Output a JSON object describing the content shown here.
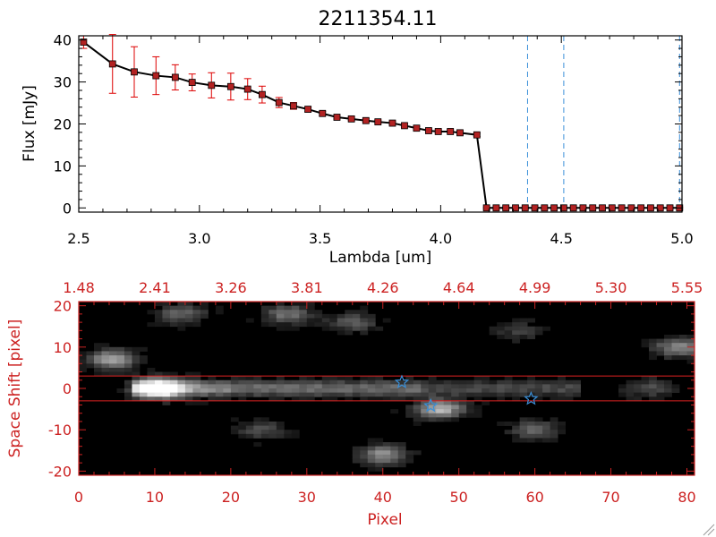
{
  "chart_data": [
    {
      "type": "line",
      "title": "2211354.11",
      "xlabel": "Lambda [um]",
      "ylabel": "Flux [mJy]",
      "xlim": [
        2.5,
        5.0
      ],
      "ylim": [
        -1,
        41
      ],
      "x_ticks": [
        "2.5",
        "3.0",
        "3.5",
        "4.0",
        "4.5",
        "5.0"
      ],
      "y_ticks": [
        "0",
        "10",
        "20",
        "30",
        "40"
      ],
      "grid": false,
      "series": [
        {
          "color": "#000000",
          "marker_color": "#b22222",
          "error_color": "#dd0000",
          "x": [
            2.52,
            2.64,
            2.73,
            2.82,
            2.9,
            2.97,
            3.05,
            3.13,
            3.2,
            3.26,
            3.33,
            3.39,
            3.45,
            3.51,
            3.57,
            3.63,
            3.69,
            3.74,
            3.8,
            3.85,
            3.9,
            3.95,
            3.99,
            4.04,
            4.08,
            4.15,
            4.19,
            4.23,
            4.27,
            4.31,
            4.35,
            4.39,
            4.43,
            4.47,
            4.51,
            4.55,
            4.59,
            4.63,
            4.67,
            4.71,
            4.75,
            4.79,
            4.83,
            4.87,
            4.91,
            4.95,
            4.99
          ],
          "y": [
            39.5,
            34.3,
            32.4,
            31.5,
            31.1,
            29.9,
            29.2,
            28.9,
            28.3,
            27.0,
            25.1,
            24.3,
            23.5,
            22.5,
            21.6,
            21.2,
            20.8,
            20.5,
            20.2,
            19.6,
            19.0,
            18.4,
            18.2,
            18.2,
            17.9,
            17.4,
            0,
            0,
            0,
            0,
            0,
            0,
            0,
            0,
            0,
            0,
            0,
            0,
            0,
            0,
            0,
            0,
            0,
            0,
            0,
            0,
            0
          ],
          "err": [
            1.5,
            7.0,
            6.0,
            4.5,
            3.0,
            2.0,
            3.0,
            3.2,
            2.5,
            2.0,
            1.2,
            0.8,
            0.6,
            0.5,
            0.4,
            0.4,
            0.4,
            0.4,
            0.4,
            0.4,
            0.4,
            0.4,
            0.4,
            0.4,
            0.4,
            0.4,
            0.2,
            0.2,
            0.2,
            0.2,
            0.2,
            0.2,
            0.2,
            0.2,
            0.2,
            0.2,
            0.2,
            0.2,
            0.2,
            0.2,
            0.2,
            0.2,
            0.2,
            0.2,
            0.2,
            0.2,
            0.2
          ]
        }
      ],
      "vlines": [
        {
          "x": 4.36,
          "color": "#3a8fd8",
          "style": "dashed"
        },
        {
          "x": 4.51,
          "color": "#3a8fd8",
          "style": "dashed"
        },
        {
          "x": 4.99,
          "color": "#3a8fd8",
          "style": "dashed"
        }
      ]
    },
    {
      "type": "heatmap",
      "xlabel": "Pixel",
      "ylabel": "Space Shift [pixel]",
      "xlim": [
        0,
        81
      ],
      "ylim": [
        -21,
        21
      ],
      "x_ticks": [
        "0",
        "10",
        "20",
        "30",
        "40",
        "50",
        "60",
        "70",
        "80"
      ],
      "y_ticks": [
        "-20",
        "-10",
        "0",
        "10",
        "20"
      ],
      "top_ticks": [
        "1.48",
        "2.41",
        "3.26",
        "3.81",
        "4.26",
        "4.64",
        "4.99",
        "5.30",
        "5.55"
      ],
      "axis_color": "#cc2222",
      "colormap": "grayscale",
      "trace_lines": [
        3,
        -3
      ],
      "trace_line_color": "#dd2222",
      "markers": [
        {
          "x": 42.5,
          "y": 1.5,
          "symbol": "star",
          "color": "#3a8fd8"
        },
        {
          "x": 46.3,
          "y": -4.2,
          "symbol": "star",
          "color": "#3a8fd8"
        },
        {
          "x": 59.5,
          "y": -2.5,
          "symbol": "star",
          "color": "#3a8fd8"
        }
      ],
      "sources": [
        {
          "x": 10.5,
          "y": 0,
          "amp": 1.0
        },
        {
          "x": 4.5,
          "y": 7,
          "amp": 0.65
        },
        {
          "x": 47.5,
          "y": -5,
          "amp": 0.72
        },
        {
          "x": 40,
          "y": -16,
          "amp": 0.55
        },
        {
          "x": 13.5,
          "y": 18,
          "amp": 0.4
        },
        {
          "x": 27.5,
          "y": 18,
          "amp": 0.45
        },
        {
          "x": 36,
          "y": 16,
          "amp": 0.35
        },
        {
          "x": 79,
          "y": 10,
          "amp": 0.55
        },
        {
          "x": 60,
          "y": -10,
          "amp": 0.4
        },
        {
          "x": 75,
          "y": 0,
          "amp": 0.3
        },
        {
          "x": 58,
          "y": 14,
          "amp": 0.25
        },
        {
          "x": 24,
          "y": -10,
          "amp": 0.3
        }
      ]
    }
  ]
}
